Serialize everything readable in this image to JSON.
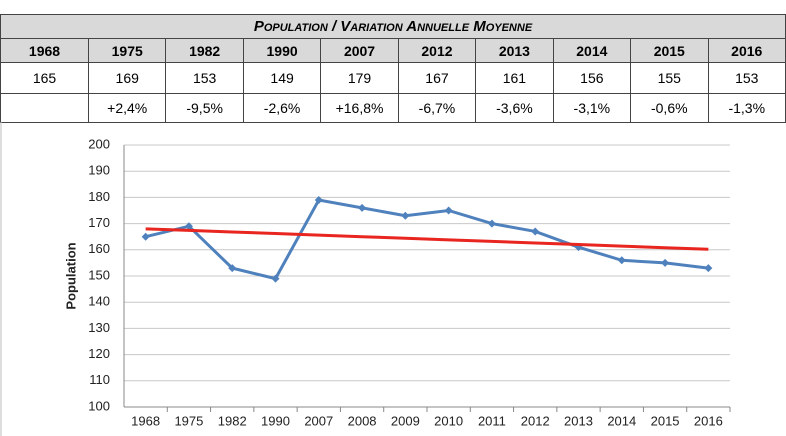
{
  "table": {
    "title": "Population / Variation Annuelle Moyenne",
    "header": [
      "1968",
      "1975",
      "1982",
      "1990",
      "2007",
      "2012",
      "2013",
      "2014",
      "2015",
      "2016"
    ],
    "population": [
      "165",
      "169",
      "153",
      "149",
      "179",
      "167",
      "161",
      "156",
      "155",
      "153"
    ],
    "variation": [
      "+2,4%",
      "-9,5%",
      "-2,6%",
      "+16,8%",
      "-6,7%",
      "-3,6%",
      "-3,1%",
      "-0,6%",
      "-1,3%"
    ]
  },
  "chart_data": {
    "type": "line",
    "ylabel": "Population",
    "categories": [
      "1968",
      "1975",
      "1982",
      "1990",
      "2007",
      "2008",
      "2009",
      "2010",
      "2011",
      "2012",
      "2013",
      "2014",
      "2015",
      "2016"
    ],
    "series": [
      {
        "color": "#4f81bd",
        "marker": true,
        "values": [
          165,
          169,
          153,
          149,
          179,
          176,
          173,
          175,
          170,
          167,
          161,
          156,
          155,
          153
        ]
      },
      {
        "color": "#e8251f",
        "marker": false,
        "values": [
          168,
          167.4,
          166.8,
          166.2,
          165.6,
          165,
          164.4,
          163.8,
          163.2,
          162.6,
          162,
          161.4,
          160.8,
          160.2
        ]
      }
    ],
    "ylim": [
      100,
      200
    ],
    "yticks": [
      100,
      110,
      120,
      130,
      140,
      150,
      160,
      170,
      180,
      190,
      200
    ],
    "grid": true
  }
}
